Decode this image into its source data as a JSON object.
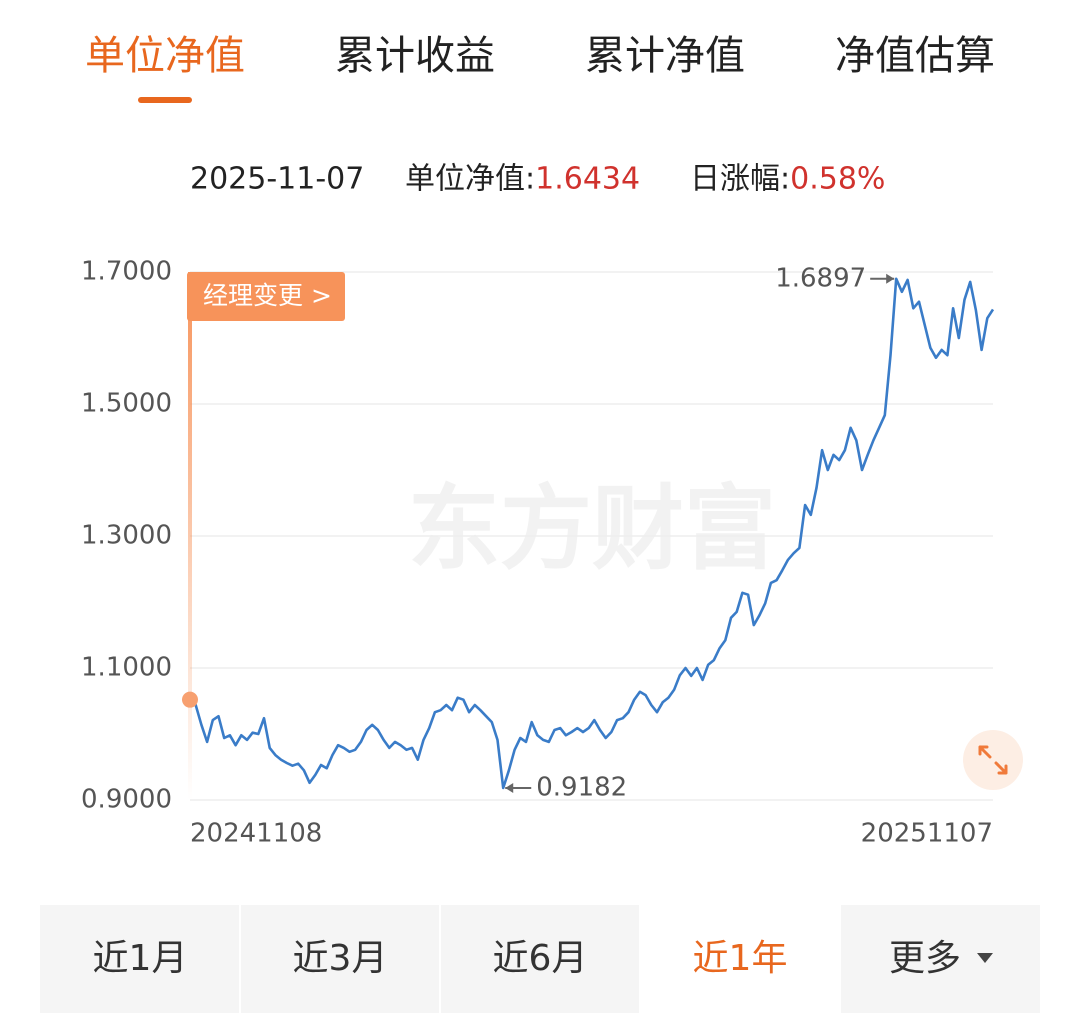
{
  "tabs": [
    "单位净值",
    "累计收益",
    "累计净值",
    "净值估算"
  ],
  "active_tab": 0,
  "header": {
    "date": "2025-11-07",
    "nav_label": "单位净值:",
    "nav": "1.6434",
    "change_label": "日涨幅:",
    "change": "0.58%"
  },
  "chart_data": {
    "type": "line",
    "color": "#3a7cc8",
    "watermark": "东方财富",
    "marker_label": "经理变更 >",
    "categories": [
      "20241108",
      null,
      null,
      null,
      null,
      null,
      null,
      null,
      null,
      null,
      null,
      null,
      null,
      null,
      null,
      null,
      null,
      null,
      null,
      null,
      null,
      null,
      null,
      null,
      null,
      null,
      null,
      null,
      null,
      null,
      null,
      null,
      null,
      null,
      null,
      null,
      null,
      null,
      null,
      null,
      null,
      null,
      null,
      null,
      null,
      null,
      null,
      null,
      null,
      null,
      null,
      null,
      null,
      null,
      null,
      null,
      null,
      null,
      null,
      null,
      null,
      null,
      null,
      null,
      null,
      null,
      null,
      null,
      null,
      null,
      null,
      null,
      null,
      null,
      null,
      null,
      null,
      null,
      null,
      null,
      null,
      null,
      null,
      null,
      null,
      null,
      null,
      null,
      null,
      null,
      null,
      null,
      null,
      null,
      null,
      null,
      null,
      null,
      null,
      null,
      null,
      null,
      null,
      null,
      null,
      null,
      null,
      null,
      null,
      null,
      null,
      null,
      null,
      null,
      null,
      null,
      null,
      null,
      null,
      null,
      null,
      null,
      null,
      null,
      null,
      null,
      null,
      null,
      null,
      null,
      null,
      null,
      null,
      null,
      null,
      null,
      null,
      null,
      null,
      null,
      null,
      "20251107"
    ],
    "values": [
      1.052,
      1.044,
      1.014,
      0.988,
      1.021,
      1.027,
      0.994,
      0.998,
      0.983,
      0.998,
      0.991,
      1.002,
      1.0,
      1.024,
      0.979,
      0.968,
      0.961,
      0.956,
      0.952,
      0.955,
      0.945,
      0.926,
      0.938,
      0.953,
      0.948,
      0.968,
      0.983,
      0.979,
      0.973,
      0.976,
      0.988,
      1.006,
      1.014,
      1.006,
      0.991,
      0.979,
      0.988,
      0.983,
      0.976,
      0.979,
      0.961,
      0.991,
      1.009,
      1.033,
      1.036,
      1.044,
      1.036,
      1.055,
      1.052,
      1.033,
      1.044,
      1.036,
      1.027,
      1.018,
      0.991,
      0.9182,
      0.945,
      0.976,
      0.994,
      0.988,
      1.018,
      0.998,
      0.991,
      0.988,
      1.006,
      1.009,
      0.998,
      1.003,
      1.009,
      1.003,
      1.009,
      1.021,
      1.006,
      0.994,
      1.003,
      1.021,
      1.024,
      1.033,
      1.052,
      1.064,
      1.059,
      1.044,
      1.033,
      1.048,
      1.055,
      1.067,
      1.089,
      1.1,
      1.088,
      1.1,
      1.082,
      1.105,
      1.112,
      1.13,
      1.142,
      1.176,
      1.185,
      1.214,
      1.211,
      1.165,
      1.18,
      1.198,
      1.229,
      1.233,
      1.248,
      1.264,
      1.274,
      1.282,
      1.347,
      1.332,
      1.373,
      1.43,
      1.4,
      1.423,
      1.415,
      1.43,
      1.464,
      1.445,
      1.4,
      1.423,
      1.445,
      1.464,
      1.483,
      1.574,
      1.6897,
      1.67,
      1.688,
      1.645,
      1.655,
      1.62,
      1.585,
      1.57,
      1.582,
      1.574,
      1.645,
      1.6,
      1.658,
      1.685,
      1.642,
      1.582,
      1.63,
      1.6434
    ],
    "ylim": [
      0.9,
      1.7
    ],
    "yticks": [
      {
        "value": 0.9,
        "label": "0.9000"
      },
      {
        "value": 1.1,
        "label": "1.1000"
      },
      {
        "value": 1.3,
        "label": "1.3000"
      },
      {
        "value": 1.5,
        "label": "1.5000"
      },
      {
        "value": 1.7,
        "label": "1.7000"
      }
    ],
    "grid": true
  },
  "range_tabs": [
    "近1月",
    "近3月",
    "近6月",
    "近1年",
    "更多"
  ],
  "active_range": 3
}
